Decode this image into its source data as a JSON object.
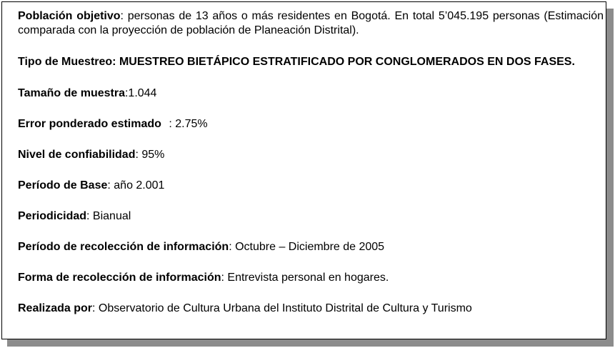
{
  "items": [
    {
      "label": "Población objetivo",
      "value": ": personas de 13 años o más residentes en Bogotá. En total 5’045.195 personas  (Estimación comparada con la proyección de población de Planeación Distrital)."
    },
    {
      "label": "Tipo de Muestreo: MUESTREO BIETÁPICO ESTRATIFICADO POR CONGLOMERADOS EN DOS FASES.",
      "value": ""
    },
    {
      "label": "Tamaño de muestra",
      "value": ":1.044"
    },
    {
      "label": "Error ponderado estimado",
      "value": " : 2.75%"
    },
    {
      "label": "Nivel de confiabilidad",
      "value": ": 95%"
    },
    {
      "label": "Período de Base",
      "value": ": año 2.001"
    },
    {
      "label": "Periodicidad",
      "value": ": Bianual"
    },
    {
      "label": "Período de recolección de información",
      "value": ": Octubre – Diciembre de 2005"
    },
    {
      "label": "Forma de recolección de información",
      "value": ": Entrevista personal en hogares."
    },
    {
      "label": "Realizada por",
      "value": ": Observatorio de Cultura Urbana del Instituto Distrital de Cultura y Turismo"
    }
  ]
}
